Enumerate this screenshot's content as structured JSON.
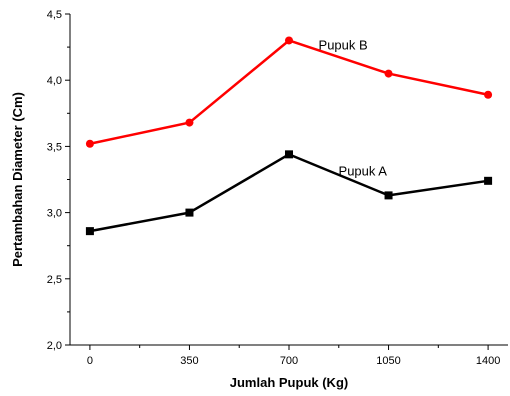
{
  "chart_data": {
    "type": "line",
    "xlabel": "Jumlah Pupuk (Kg)",
    "ylabel": "Pertambahan Diameter (Cm)",
    "x": [
      0,
      350,
      700,
      1050,
      1400
    ],
    "x_tick_labels": [
      "0",
      "350",
      "700",
      "1050",
      "1400"
    ],
    "xlim": [
      -70,
      1470
    ],
    "ylim": [
      2.0,
      4.5
    ],
    "y_ticks": [
      2.0,
      2.5,
      3.0,
      3.5,
      4.0,
      4.5
    ],
    "y_tick_labels": [
      "2,0",
      "2,5",
      "3,0",
      "3,5",
      "4,0",
      "4,5"
    ],
    "grid": false,
    "series": [
      {
        "name": "Pupuk B",
        "values": [
          3.52,
          3.68,
          4.3,
          4.05,
          3.89
        ],
        "color": "#ff0000",
        "marker": "circle"
      },
      {
        "name": "Pupuk A",
        "values": [
          2.86,
          3.0,
          3.44,
          3.13,
          3.24
        ],
        "color": "#000000",
        "marker": "square"
      }
    ]
  }
}
